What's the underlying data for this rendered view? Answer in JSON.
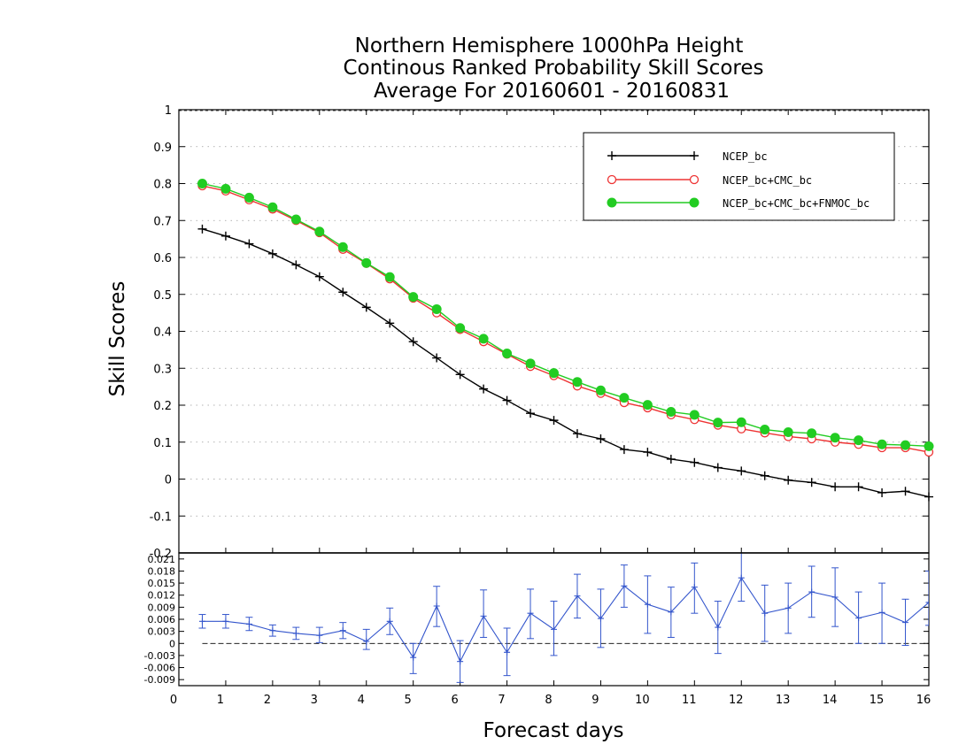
{
  "chart_data": [
    {
      "type": "line",
      "title_lines": [
        "Northern Hemisphere 1000hPa Height",
        "Continous Ranked Probability Skill Scores",
        "Average For 20160601 - 20160831"
      ],
      "xlabel": "",
      "ylabel": "Skill Scores",
      "xlim": [
        0,
        16
      ],
      "ylim": [
        -0.2,
        1
      ],
      "xticks": [
        "0",
        "1",
        "2",
        "3",
        "4",
        "5",
        "6",
        "7",
        "8",
        "9",
        "10",
        "11",
        "12",
        "13",
        "14",
        "15",
        "16"
      ],
      "yticks": [
        "-0.2",
        "-0.1",
        "0",
        "0.1",
        "0.2",
        "0.3",
        "0.4",
        "0.5",
        "0.6",
        "0.7",
        "0.8",
        "0.9",
        "1"
      ],
      "grid": true,
      "legend_position": "top-right",
      "x": [
        0.5,
        1,
        1.5,
        2,
        2.5,
        3,
        3.5,
        4,
        4.5,
        5,
        5.5,
        6,
        6.5,
        7,
        7.5,
        8,
        8.5,
        9,
        9.5,
        10,
        10.5,
        11,
        11.5,
        12,
        12.5,
        13,
        13.5,
        14,
        14.5,
        15,
        15.5,
        16
      ],
      "series": [
        {
          "name": "NCEP_bc",
          "color": "#000000",
          "marker": "plus",
          "values": [
            0.677,
            0.658,
            0.637,
            0.61,
            0.58,
            0.548,
            0.506,
            0.465,
            0.422,
            0.372,
            0.328,
            0.283,
            0.244,
            0.213,
            0.178,
            0.159,
            0.123,
            0.109,
            0.08,
            0.073,
            0.054,
            0.045,
            0.031,
            0.022,
            0.009,
            -0.003,
            -0.009,
            -0.021,
            -0.021,
            -0.037,
            -0.033,
            -0.048
          ]
        },
        {
          "name": "NCEP_bc+CMC_bc",
          "color": "#ee3333",
          "marker": "open-circle",
          "values": [
            0.794,
            0.78,
            0.756,
            0.731,
            0.7,
            0.667,
            0.622,
            0.584,
            0.542,
            0.49,
            0.45,
            0.405,
            0.372,
            0.338,
            0.305,
            0.28,
            0.252,
            0.232,
            0.207,
            0.193,
            0.174,
            0.161,
            0.146,
            0.136,
            0.125,
            0.115,
            0.109,
            0.1,
            0.094,
            0.085,
            0.085,
            0.073
          ]
        },
        {
          "name": "NCEP_bc+CMC_bc+FNMOC_bc",
          "color": "#22cc22",
          "marker": "filled-circle",
          "values": [
            0.8,
            0.786,
            0.762,
            0.736,
            0.703,
            0.67,
            0.628,
            0.585,
            0.547,
            0.493,
            0.46,
            0.409,
            0.38,
            0.34,
            0.313,
            0.287,
            0.263,
            0.24,
            0.22,
            0.201,
            0.182,
            0.174,
            0.153,
            0.154,
            0.134,
            0.127,
            0.124,
            0.112,
            0.105,
            0.094,
            0.092,
            0.089
          ]
        }
      ]
    },
    {
      "type": "line",
      "title": "",
      "xlabel": "Forecast days",
      "ylabel": "",
      "xlim": [
        0,
        16
      ],
      "ylim": [
        -0.0105,
        0.0225
      ],
      "xticks": [
        "0",
        "1",
        "2",
        "3",
        "4",
        "5",
        "6",
        "7",
        "8",
        "9",
        "10",
        "11",
        "12",
        "13",
        "14",
        "15",
        "16"
      ],
      "yticks": [
        "-0.009",
        "-0.006",
        "-0.003",
        "0",
        "0.003",
        "0.006",
        "0.009",
        "0.012",
        "0.015",
        "0.018",
        "0.021"
      ],
      "reference_line": 0,
      "x": [
        0.5,
        1,
        1.5,
        2,
        2.5,
        3,
        3.5,
        4,
        4.5,
        5,
        5.5,
        6,
        6.5,
        7,
        7.5,
        8,
        8.5,
        9,
        9.5,
        10,
        10.5,
        11,
        11.5,
        12,
        12.5,
        13,
        13.5,
        14,
        14.5,
        15,
        15.5,
        16
      ],
      "series": [
        {
          "name": "",
          "color": "#3355cc",
          "marker": "plus",
          "values": [
            0.0055,
            0.0055,
            0.0048,
            0.0032,
            0.0025,
            0.002,
            0.0032,
            0.0005,
            0.0055,
            -0.0035,
            0.0093,
            -0.0045,
            0.0068,
            -0.0022,
            0.0075,
            0.0035,
            0.0118,
            0.0062,
            0.0143,
            0.0097,
            0.0078,
            0.014,
            0.004,
            0.0163,
            0.0075,
            0.0088,
            0.0128,
            0.0115,
            0.0063,
            0.0077,
            0.0052,
            0.0102
          ],
          "error_low": [
            0.0038,
            0.0038,
            0.0032,
            0.0018,
            0.001,
            0.0002,
            0.0012,
            -0.0015,
            0.0022,
            -0.0075,
            0.0042,
            -0.0097,
            0.0015,
            -0.008,
            0.0012,
            -0.003,
            0.0063,
            -0.001,
            0.009,
            0.0025,
            0.0015,
            0.0075,
            -0.0025,
            0.0105,
            0.0005,
            0.0025,
            0.0065,
            0.0042,
            0.0,
            0.0,
            -0.0005,
            0.0045
          ],
          "error_high": [
            0.0072,
            0.0072,
            0.0065,
            0.0046,
            0.004,
            0.004,
            0.0052,
            0.0035,
            0.0088,
            0.0,
            0.0142,
            0.0007,
            0.0133,
            0.0038,
            0.0135,
            0.0105,
            0.0172,
            0.0135,
            0.0195,
            0.0168,
            0.014,
            0.02,
            0.0105,
            0.023,
            0.0145,
            0.015,
            0.0192,
            0.0188,
            0.0128,
            0.015,
            0.011,
            0.018
          ]
        }
      ]
    }
  ]
}
